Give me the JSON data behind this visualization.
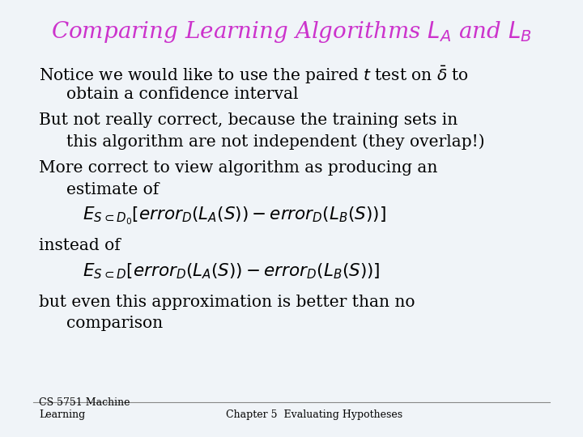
{
  "title": "Comparing Learning Algorithms $L_A$ and $L_B$",
  "title_color": "#cc33cc",
  "title_fontsize": 20,
  "background_color": "#f0f4f8",
  "text_color": "#000000",
  "footer_left": "CS 5751 Machine\nLearning",
  "footer_right": "Chapter 5  Evaluating Hypotheses",
  "body_fontsize": 14.5,
  "formula1": "$E_{S \\subset D_0}[error_D(L_A(S)) - error_D(L_B(S))]$",
  "formula2": "$E_{S \\subset D}[error_D(L_A(S)) - error_D(L_B(S))]$"
}
